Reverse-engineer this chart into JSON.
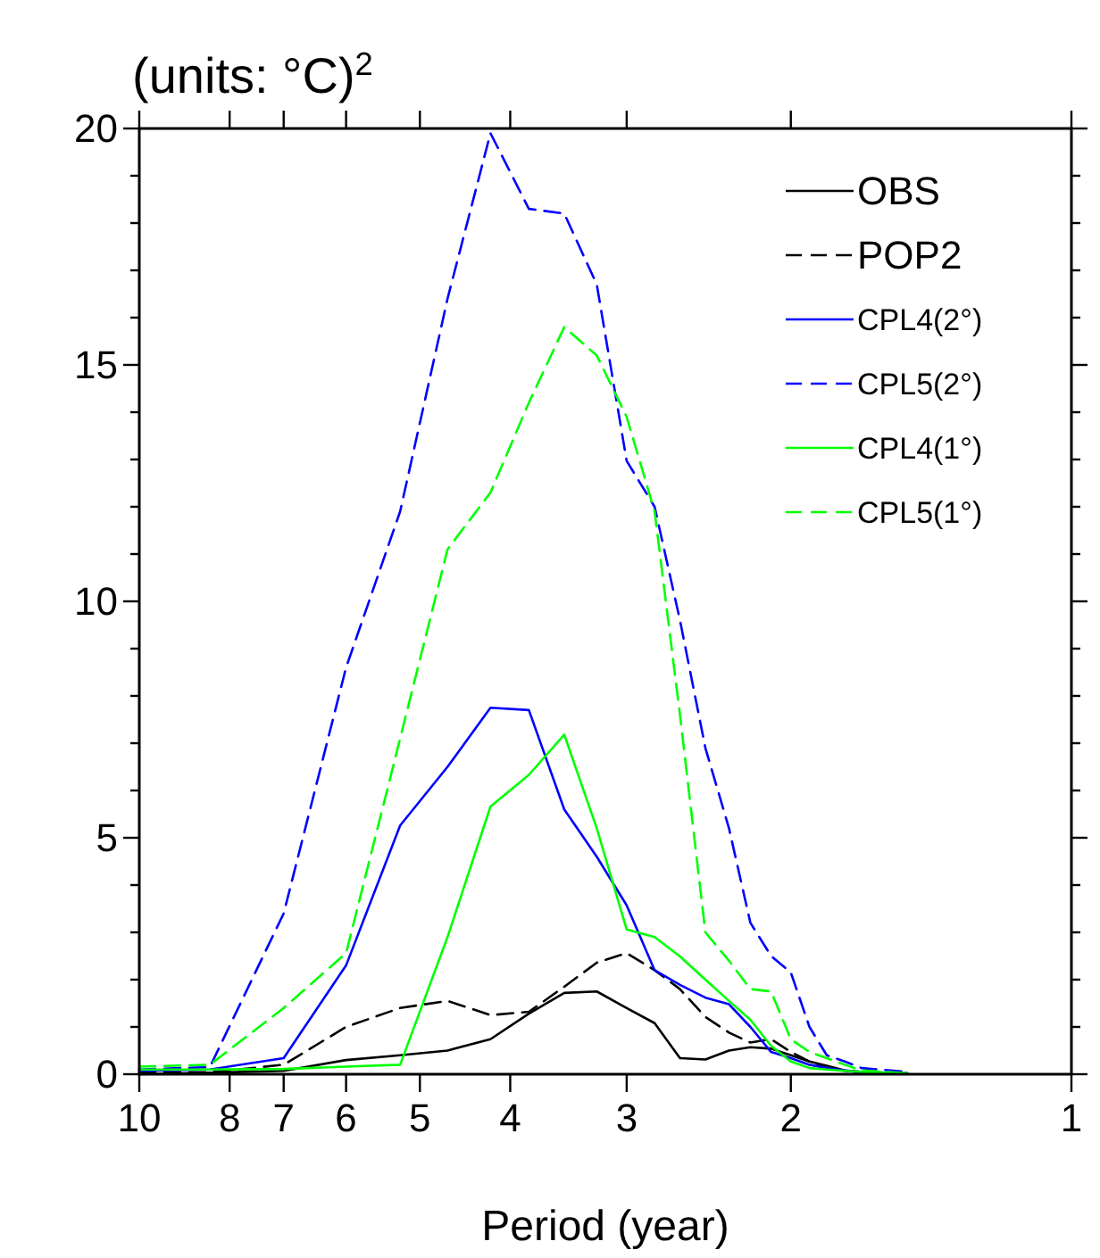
{
  "chart_data": {
    "type": "line",
    "title": "(units: °C)$^{2}$",
    "xlabel": "Period (year)",
    "log": "x",
    "xlim": [
      10,
      1
    ],
    "xticks": [
      10,
      8,
      7,
      6,
      5,
      4,
      3,
      2,
      1
    ],
    "ylim": [
      0,
      20
    ],
    "yticks": [
      0,
      {
        "value": 1,
        "label": null
      },
      {
        "value": 2,
        "label": null
      },
      {
        "value": 3,
        "label": null
      },
      {
        "value": 4,
        "label": null
      },
      5,
      {
        "value": 6,
        "label": null
      },
      {
        "value": 7,
        "label": null
      },
      {
        "value": 8,
        "label": null
      },
      {
        "value": 9,
        "label": null
      },
      10,
      {
        "value": 11,
        "label": null
      },
      {
        "value": 12,
        "label": null
      },
      {
        "value": 13,
        "label": null
      },
      {
        "value": 14,
        "label": null
      },
      15,
      {
        "value": 16,
        "label": null
      },
      {
        "value": 17,
        "label": null
      },
      {
        "value": 18,
        "label": null
      },
      {
        "value": 19,
        "label": null
      },
      20
    ],
    "grid": false,
    "legend": "top right",
    "marker": "none",
    "x": [
      10,
      8.4,
      7,
      6,
      5.25,
      4.67,
      4.2,
      3.82,
      3.5,
      3.23,
      3,
      2.8,
      2.63,
      2.47,
      2.33,
      2.21,
      2.1,
      2,
      1.91,
      1.83,
      1.75,
      1.68,
      1.5
    ],
    "series": [
      {
        "name": "OBS",
        "color": "#000000",
        "line_style": "solid",
        "values": [
          0,
          0.03,
          0.07,
          0.3,
          0.4,
          0.5,
          0.74,
          1.28,
          1.72,
          1.75,
          1.4,
          1.08,
          0.34,
          0.31,
          0.5,
          0.57,
          0.54,
          0.4,
          0.27,
          0.18,
          0.08,
          0.04,
          0.02
        ]
      },
      {
        "name": "POP2",
        "color": "#000000",
        "line_style": "dashed",
        "values": [
          0.04,
          0.04,
          0.2,
          1.0,
          1.4,
          1.55,
          1.25,
          1.32,
          1.85,
          2.36,
          2.56,
          2.2,
          1.8,
          1.21,
          0.88,
          0.67,
          0.74,
          0.47,
          0.27,
          0.13,
          0.07,
          0.04,
          0.02
        ]
      },
      {
        "name": "CPL4(2°)",
        "color": "#0000ff",
        "line_style": "solid",
        "values": [
          0.07,
          0.1,
          0.34,
          2.3,
          5.26,
          6.5,
          7.75,
          7.7,
          5.6,
          4.6,
          3.57,
          2.2,
          1.89,
          1.62,
          1.48,
          1.0,
          0.47,
          0.34,
          0.2,
          0.13,
          0.08,
          0.05,
          0.02
        ]
      },
      {
        "name": "CPL5(2°)",
        "color": "#0000ff",
        "line_style": "dashed",
        "values": [
          0.1,
          0.15,
          3.4,
          8.6,
          11.9,
          16.4,
          19.9,
          18.3,
          18.2,
          16.7,
          12.97,
          12.0,
          9.6,
          6.9,
          5.2,
          3.2,
          2.5,
          2.15,
          1.0,
          0.4,
          0.27,
          0.13,
          0.05
        ]
      },
      {
        "name": "CPL4(1°)",
        "color": "#00ff00",
        "line_style": "solid",
        "values": [
          0.1,
          0.1,
          0.11,
          0.16,
          0.2,
          2.9,
          5.66,
          6.33,
          7.18,
          5.2,
          3.06,
          2.9,
          2.49,
          2.0,
          1.55,
          1.15,
          0.6,
          0.27,
          0.13,
          0.1,
          0.07,
          0.05,
          0.02
        ]
      },
      {
        "name": "CPL5(1°)",
        "color": "#00ff00",
        "line_style": "dashed",
        "values": [
          0.16,
          0.2,
          1.4,
          2.56,
          7.1,
          11.1,
          12.3,
          14.2,
          15.8,
          15.2,
          13.9,
          11.9,
          7.6,
          3.0,
          2.4,
          1.8,
          1.75,
          0.74,
          0.47,
          0.34,
          0.2,
          0.08,
          0.02
        ]
      }
    ]
  }
}
